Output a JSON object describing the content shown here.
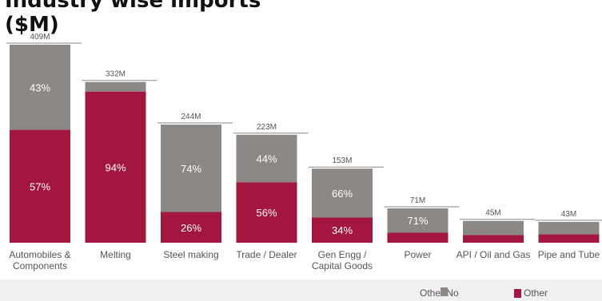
{
  "title": {
    "line1": "Industry wise imports",
    "line2": "($M)"
  },
  "colors": {
    "top_segment": "#8c8886",
    "bottom_segment": "#a3163f",
    "total_line": "#888888"
  },
  "legend": {
    "item1_label": "Other No",
    "item2_label": "Other"
  },
  "chart_data": {
    "type": "bar",
    "stacked": true,
    "categories": [
      "Automobiles & Components",
      "Melting",
      "Steel making",
      "Trade / Dealer",
      "Gen Engg / Capital Goods",
      "Power",
      "API / Oil and Gas",
      "Pipe and Tube"
    ],
    "category_lines": [
      [
        "Automobiles &",
        "Components"
      ],
      [
        "Melting"
      ],
      [
        "Steel making"
      ],
      [
        "Trade / Dealer"
      ],
      [
        "Gen Engg /",
        "Capital Goods"
      ],
      [
        "Power"
      ],
      [
        "API / Oil and Gas"
      ],
      [
        "Pipe and Tube"
      ]
    ],
    "totals": [
      409,
      332,
      244,
      223,
      153,
      71,
      45,
      43
    ],
    "total_labels": [
      "409M",
      "332M",
      "244M",
      "223M",
      "153M",
      "71M",
      "45M",
      "43M"
    ],
    "unit": "$M",
    "series": [
      {
        "name": "Other",
        "values_pct": [
          57,
          94,
          26,
          56,
          34,
          29,
          35,
          40
        ],
        "labels": [
          "57%",
          "94%",
          "26%",
          "56%",
          "34%",
          "",
          "",
          ""
        ]
      },
      {
        "name": "No",
        "values_pct": [
          43,
          6,
          74,
          44,
          66,
          71,
          65,
          60
        ],
        "labels": [
          "43%",
          "",
          "74%",
          "44%",
          "66%",
          "71%",
          "",
          ""
        ]
      }
    ],
    "ylim": [
      0,
      409
    ],
    "grid": false,
    "legend_position": "bottom-right"
  }
}
